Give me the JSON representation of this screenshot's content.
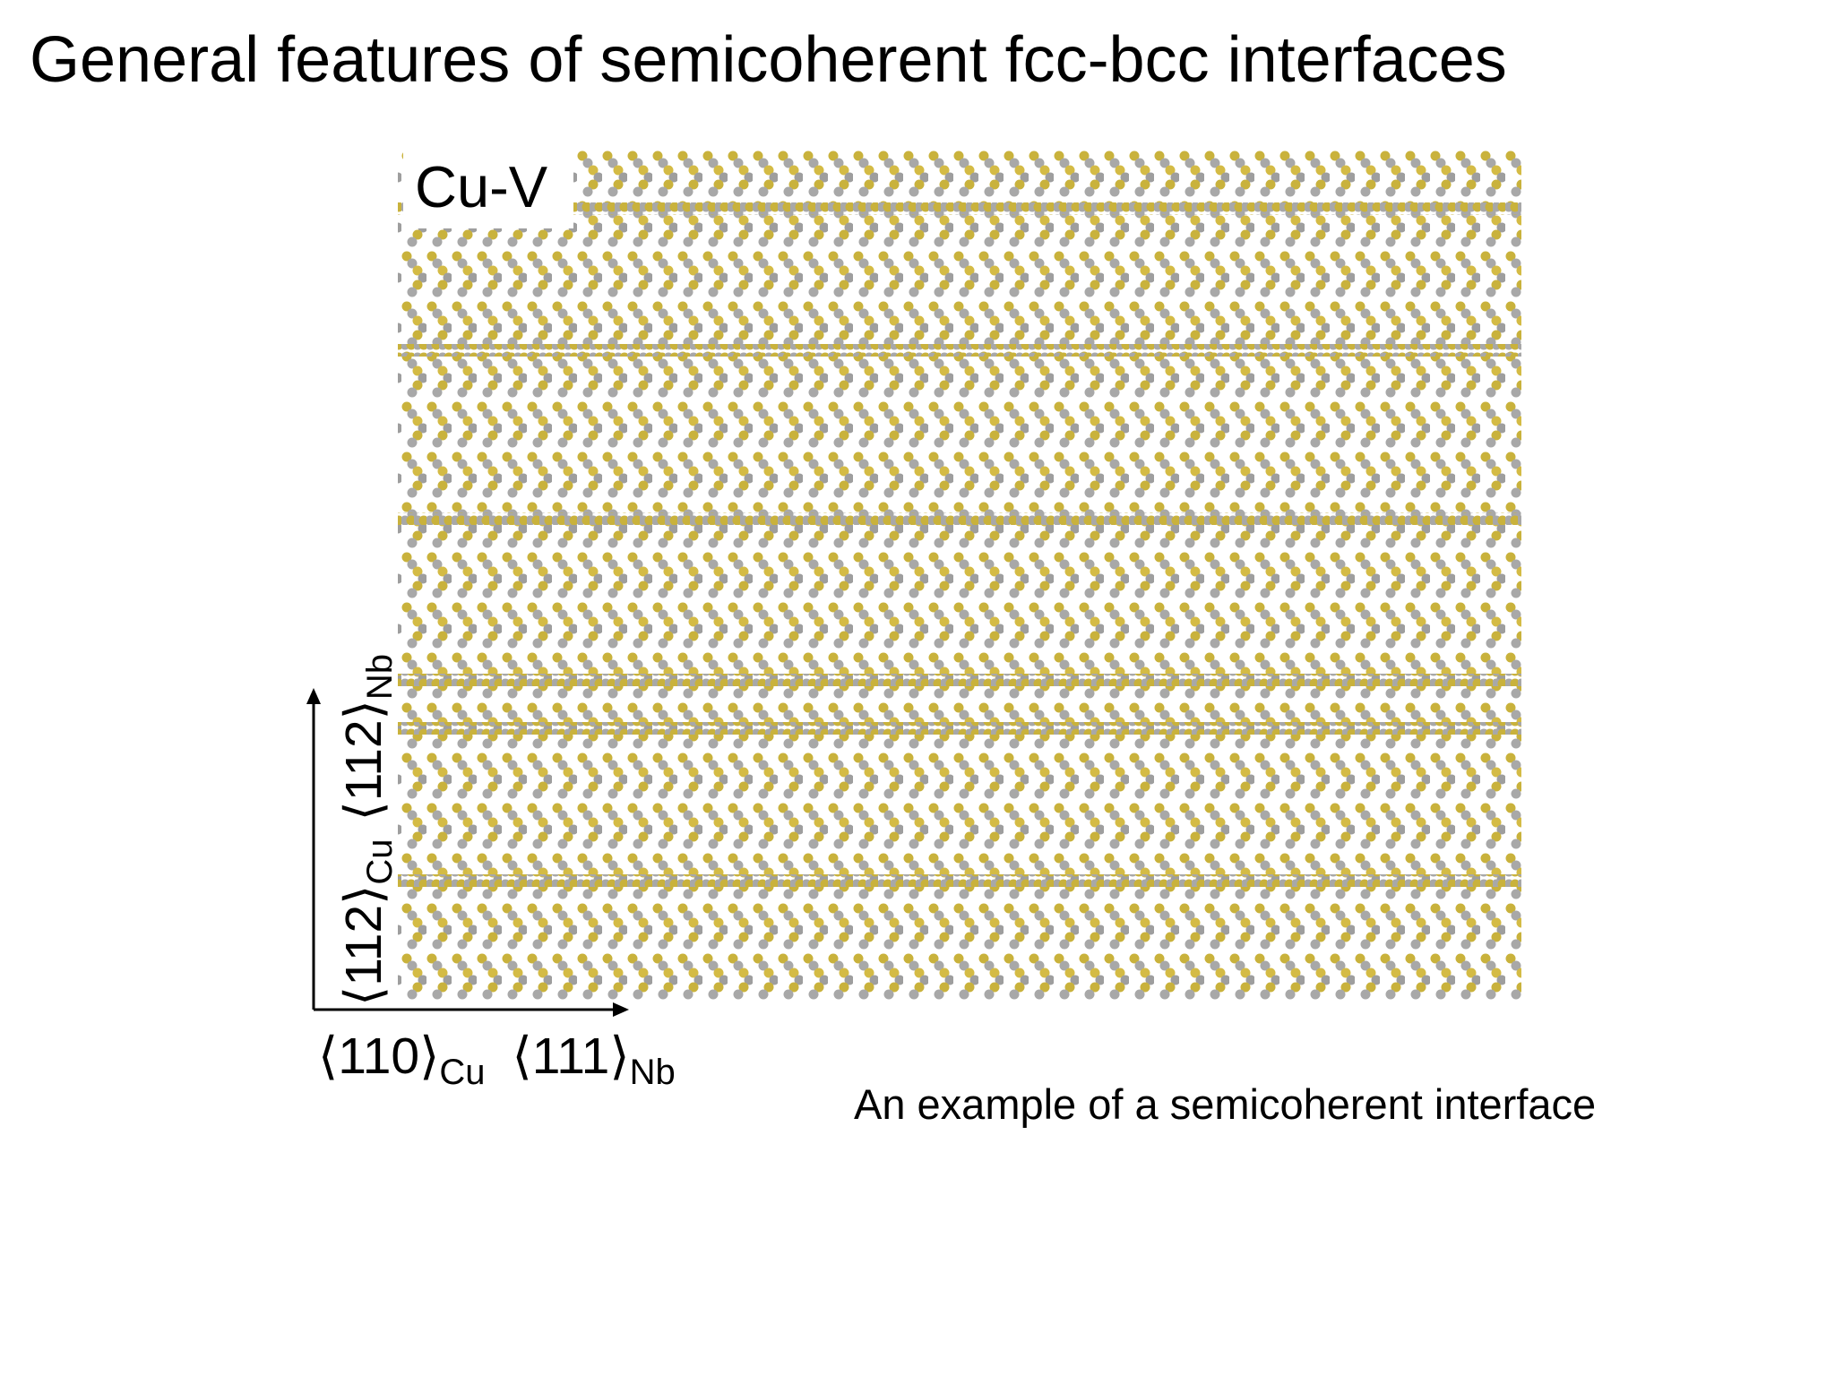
{
  "title": "General features of semicoherent fcc-bcc interfaces",
  "figure": {
    "label": "Cu-V",
    "vertical_axis": [
      "⟨112⟩",
      "Cu",
      "⟨112⟩",
      "Nb"
    ],
    "horizontal_axis": [
      "⟨110⟩",
      "Cu",
      "⟨111⟩",
      "Nb"
    ]
  },
  "caption": "An example of a semicoherent interface"
}
